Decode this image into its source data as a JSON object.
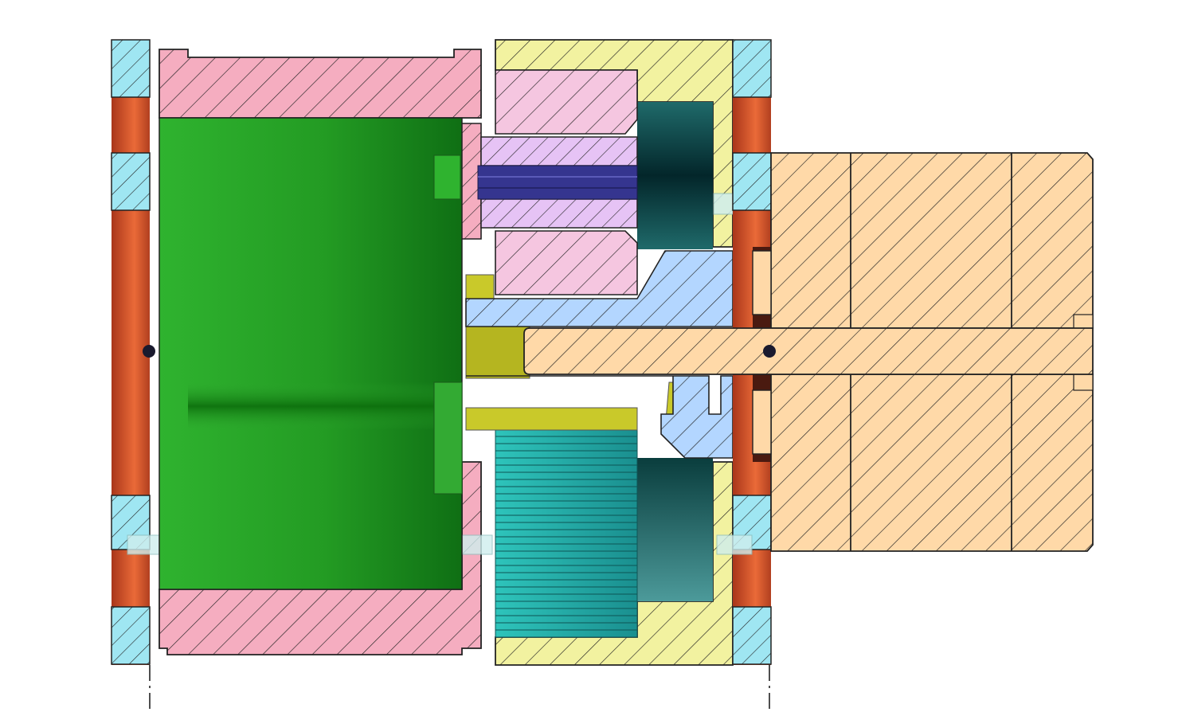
{
  "view": {
    "type": "cad-section-view",
    "background": "#ffffff",
    "text_labels": []
  },
  "parts": [
    {
      "id": "left-flange-ring",
      "color": "#9fe6f2",
      "hatch": "single",
      "fill_side": "#d9572b"
    },
    {
      "id": "pulley-housing",
      "color": "#f5adc0",
      "hatch": "single"
    },
    {
      "id": "inner-drum",
      "color": "#2aa52a",
      "shaded": true
    },
    {
      "id": "planet-carrier",
      "color": "#f5c6e0",
      "hatch": "single"
    },
    {
      "id": "planet-pin",
      "color": "#e6c3f5",
      "hatch": "single"
    },
    {
      "id": "bolt",
      "color": "#35358f"
    },
    {
      "id": "output-shaft-sleeve",
      "color": "#b3d6ff",
      "hatch": "single"
    },
    {
      "id": "key-spacer",
      "color": "#c9c92a"
    },
    {
      "id": "gear-teeth",
      "color": "#2ab8b0",
      "shaded": true
    },
    {
      "id": "ring-gear",
      "color": "#0f4a4a",
      "shaded": true
    },
    {
      "id": "end-cap-housing",
      "color": "#f2f2a0",
      "hatch": "single"
    },
    {
      "id": "right-flange-ring",
      "color": "#9fe6f2",
      "hatch": "single",
      "fill_side": "#c04a25"
    },
    {
      "id": "motor-body",
      "color": "#ffd9a8",
      "hatch": "single"
    },
    {
      "id": "motor-shaft",
      "color": "#ffd9a8",
      "hatch": "single"
    }
  ],
  "markers": [
    {
      "id": "left-axis-point",
      "color": "#1a1a2e"
    },
    {
      "id": "right-axis-point",
      "color": "#1a1a2e"
    }
  ]
}
